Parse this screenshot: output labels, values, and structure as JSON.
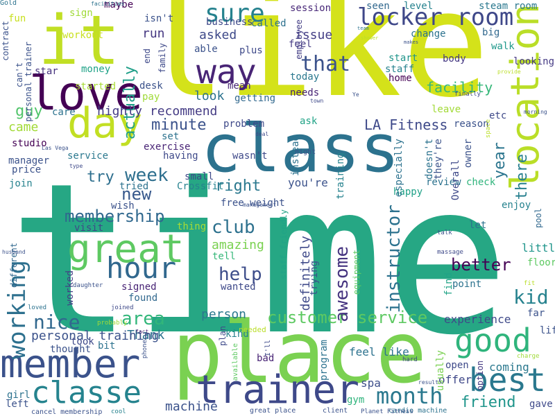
{
  "cloud": {
    "words": [
      {
        "text": "time",
        "color": "#26a784",
        "vertical": false
      },
      {
        "text": "like",
        "color": "#d4e21a",
        "vertical": false
      },
      {
        "text": "place",
        "color": "#7ad151",
        "vertical": false
      },
      {
        "text": "class",
        "color": "#2c728e",
        "vertical": false
      },
      {
        "text": "it",
        "color": "#c1df24",
        "vertical": false
      },
      {
        "text": "love",
        "color": "#440154",
        "vertical": false
      },
      {
        "text": "member",
        "color": "#3b528b",
        "vertical": false
      },
      {
        "text": "trainer",
        "color": "#3e4989",
        "vertical": false
      },
      {
        "text": "great",
        "color": "#5ec962",
        "vertical": false
      },
      {
        "text": "location",
        "color": "#bade28",
        "vertical": true
      },
      {
        "text": "day",
        "color": "#c2df23",
        "vertical": false
      },
      {
        "text": "way",
        "color": "#482475",
        "vertical": false
      },
      {
        "text": "hour",
        "color": "#31688e",
        "vertical": false
      },
      {
        "text": "classe",
        "color": "#25838e",
        "vertical": false
      },
      {
        "text": "good",
        "color": "#2fb47c",
        "vertical": false
      },
      {
        "text": "best",
        "color": "#2a788e",
        "vertical": false
      },
      {
        "text": "sure",
        "color": "#26828e",
        "vertical": false
      },
      {
        "text": "locker room",
        "color": "#3f4889",
        "vertical": false
      },
      {
        "text": "working",
        "color": "#2d708e",
        "vertical": true
      },
      {
        "text": "month",
        "color": "#2a788e",
        "vertical": false
      },
      {
        "text": "membership",
        "color": "#30688e",
        "vertical": false
      },
      {
        "text": "customer service",
        "color": "#5ec962",
        "vertical": false
      },
      {
        "text": "area",
        "color": "#32b67a",
        "vertical": false
      },
      {
        "text": "nice",
        "color": "#31688e",
        "vertical": false
      },
      {
        "text": "week",
        "color": "#2e6f8e",
        "vertical": false
      },
      {
        "text": "club",
        "color": "#2d718e",
        "vertical": false
      },
      {
        "text": "help",
        "color": "#3d4d8a",
        "vertical": false
      },
      {
        "text": "kid",
        "color": "#26828e",
        "vertical": false
      },
      {
        "text": "that",
        "color": "#3b528b",
        "vertical": false
      },
      {
        "text": "instructor",
        "color": "#2c728e",
        "vertical": true
      },
      {
        "text": "awesome",
        "color": "#463480",
        "vertical": true
      },
      {
        "text": "better",
        "color": "#440154",
        "vertical": false
      },
      {
        "text": "friend",
        "color": "#1f958b",
        "vertical": false
      },
      {
        "text": "guy",
        "color": "#50c46a",
        "vertical": false
      },
      {
        "text": "actually",
        "color": "#1f9f88",
        "vertical": true
      },
      {
        "text": "minute",
        "color": "#3b528b",
        "vertical": false
      },
      {
        "text": "LA Fitness",
        "color": "#3e4989",
        "vertical": false
      },
      {
        "text": "new",
        "color": "#38598c",
        "vertical": false
      },
      {
        "text": "try",
        "color": "#2e6f8e",
        "vertical": false
      },
      {
        "text": "right",
        "color": "#2a788e",
        "vertical": false
      },
      {
        "text": "year",
        "color": "#2b758e",
        "vertical": true
      },
      {
        "text": "there",
        "color": "#277f8e",
        "vertical": true
      },
      {
        "text": "machine",
        "color": "#3b528b",
        "vertical": false
      },
      {
        "text": "amazing",
        "color": "#7ad151",
        "vertical": false
      },
      {
        "text": "Thank",
        "color": "#2c728e",
        "vertical": false
      },
      {
        "text": "person",
        "color": "#2a788e",
        "vertical": false
      },
      {
        "text": "facility",
        "color": "#35b779",
        "vertical": false
      },
      {
        "text": "experience",
        "color": "#3e4989",
        "vertical": false
      },
      {
        "text": "definitely",
        "color": "#3e4989",
        "vertical": true
      },
      {
        "text": "look",
        "color": "#2c728e",
        "vertical": false
      },
      {
        "text": "issue",
        "color": "#433e85",
        "vertical": false
      },
      {
        "text": "asked",
        "color": "#3e4989",
        "vertical": false
      },
      {
        "text": "you're",
        "color": "#3b528b",
        "vertical": false
      },
      {
        "text": "highly recommend",
        "color": "#443b84",
        "vertical": false
      },
      {
        "text": "came",
        "color": "#a2da37",
        "vertical": false
      },
      {
        "text": "little",
        "color": "#1f958b",
        "vertical": false
      },
      {
        "text": "find",
        "color": "#20a386",
        "vertical": true
      },
      {
        "text": "personal training",
        "color": "#3b528b",
        "vertical": false
      },
      {
        "text": "spa",
        "color": "#3d4e8a",
        "vertical": false
      },
      {
        "text": "feel like",
        "color": "#2c728e",
        "vertical": false
      },
      {
        "text": "coming",
        "color": "#2a788e",
        "vertical": false
      },
      {
        "text": "offer",
        "color": "#3f4889",
        "vertical": false
      },
      {
        "text": "run",
        "color": "#453781",
        "vertical": false
      },
      {
        "text": "sign",
        "color": "#a0da39",
        "vertical": false
      },
      {
        "text": "fun",
        "color": "#c8e020",
        "vertical": false
      },
      {
        "text": "maybe",
        "color": "#440154",
        "vertical": false
      },
      {
        "text": "business",
        "color": "#3e4989",
        "vertical": false
      },
      {
        "text": "called",
        "color": "#2d718e",
        "vertical": false
      },
      {
        "text": "session",
        "color": "#482878",
        "vertical": false
      },
      {
        "text": "seen",
        "color": "#31688e",
        "vertical": false
      },
      {
        "text": "level",
        "color": "#26828e",
        "vertical": false
      },
      {
        "text": "steam room",
        "color": "#2a788e",
        "vertical": false
      },
      {
        "text": "workout",
        "color": "#c8e020",
        "vertical": false
      },
      {
        "text": "isn't",
        "color": "#3b528b",
        "vertical": false
      },
      {
        "text": "plus",
        "color": "#3e4989",
        "vertical": false
      },
      {
        "text": "feel",
        "color": "#443a83",
        "vertical": false
      },
      {
        "text": "change",
        "color": "#2c728e",
        "vertical": false
      },
      {
        "text": "big",
        "color": "#31688e",
        "vertical": false
      },
      {
        "text": "walk",
        "color": "#1f988b",
        "vertical": false
      },
      {
        "text": "able",
        "color": "#3b528b",
        "vertical": false
      },
      {
        "text": "looking",
        "color": "#443983",
        "vertical": false
      },
      {
        "text": "body",
        "color": "#453882",
        "vertical": false
      },
      {
        "text": "start",
        "color": "#1f958b",
        "vertical": false
      },
      {
        "text": "today",
        "color": "#2a788e",
        "vertical": false
      },
      {
        "text": "staff",
        "color": "#26828e",
        "vertical": false
      },
      {
        "text": "home",
        "color": "#440154",
        "vertical": false
      },
      {
        "text": "money",
        "color": "#1fa287",
        "vertical": false
      },
      {
        "text": "star",
        "color": "#46327e",
        "vertical": false
      },
      {
        "text": "started",
        "color": "#a8db34",
        "vertical": false
      },
      {
        "text": "desk",
        "color": "#3b528b",
        "vertical": false
      },
      {
        "text": "pay",
        "color": "#a0da39",
        "vertical": false
      },
      {
        "text": "needs",
        "color": "#482475",
        "vertical": false
      },
      {
        "text": "getting",
        "color": "#31688e",
        "vertical": false
      },
      {
        "text": "leave",
        "color": "#a2da37",
        "vertical": false
      },
      {
        "text": "etc",
        "color": "#3e4989",
        "vertical": false
      },
      {
        "text": "care",
        "color": "#2c728e",
        "vertical": false
      },
      {
        "text": "mean",
        "color": "#482475",
        "vertical": false
      },
      {
        "text": "ask",
        "color": "#20a386",
        "vertical": false
      },
      {
        "text": "problem",
        "color": "#3e4989",
        "vertical": false
      },
      {
        "text": "reason",
        "color": "#3b528b",
        "vertical": false
      },
      {
        "text": "set",
        "color": "#2c728e",
        "vertical": false
      },
      {
        "text": "exercise",
        "color": "#482475",
        "vertical": false
      },
      {
        "text": "having",
        "color": "#3e4989",
        "vertical": false
      },
      {
        "text": "wasn't",
        "color": "#3e4989",
        "vertical": false
      },
      {
        "text": "service",
        "color": "#2a788e",
        "vertical": false
      },
      {
        "text": "manager",
        "color": "#3b528b",
        "vertical": false
      },
      {
        "text": "studio",
        "color": "#440154",
        "vertical": false
      },
      {
        "text": "price",
        "color": "#3b528b",
        "vertical": false
      },
      {
        "text": "join",
        "color": "#26828e",
        "vertical": false
      },
      {
        "text": "tried",
        "color": "#2c728e",
        "vertical": false
      },
      {
        "text": "Crossfit",
        "color": "#26828e",
        "vertical": false
      },
      {
        "text": "small",
        "color": "#3e4989",
        "vertical": false
      },
      {
        "text": "review",
        "color": "#2c728e",
        "vertical": false
      },
      {
        "text": "check",
        "color": "#2fb47c",
        "vertical": false
      },
      {
        "text": "happy",
        "color": "#1fa187",
        "vertical": false
      },
      {
        "text": "enjoy",
        "color": "#26828e",
        "vertical": false
      },
      {
        "text": "wish",
        "color": "#3b528b",
        "vertical": false
      },
      {
        "text": "visit",
        "color": "#3e4989",
        "vertical": false
      },
      {
        "text": "free weight",
        "color": "#3b528b",
        "vertical": false
      },
      {
        "text": "let",
        "color": "#2c728e",
        "vertical": false
      },
      {
        "text": "tell",
        "color": "#35b779",
        "vertical": false
      },
      {
        "text": "thing",
        "color": "#a8db34",
        "vertical": false
      },
      {
        "text": "worked",
        "color": "#433e85",
        "vertical": true
      },
      {
        "text": "signed",
        "color": "#482475",
        "vertical": false
      },
      {
        "text": "wanted",
        "color": "#3e4989",
        "vertical": false
      },
      {
        "text": "found",
        "color": "#31688e",
        "vertical": false
      },
      {
        "text": "point",
        "color": "#2c728e",
        "vertical": false
      },
      {
        "text": "floor",
        "color": "#5ec962",
        "vertical": false
      },
      {
        "text": "far",
        "color": "#3b528b",
        "vertical": false
      },
      {
        "text": "took",
        "color": "#3e4989",
        "vertical": false
      },
      {
        "text": "bit",
        "color": "#2c728e",
        "vertical": false
      },
      {
        "text": "thought",
        "color": "#3b528b",
        "vertical": false
      },
      {
        "text": "kind",
        "color": "#26828e",
        "vertical": false
      },
      {
        "text": "bad",
        "color": "#482475",
        "vertical": false
      },
      {
        "text": "open",
        "color": "#3e4989",
        "vertical": false
      },
      {
        "text": "gym",
        "color": "#2fb47c",
        "vertical": false
      },
      {
        "text": "girl",
        "color": "#2c728e",
        "vertical": false
      },
      {
        "text": "left",
        "color": "#3b528b",
        "vertical": false
      },
      {
        "text": "gave",
        "color": "#3e4989",
        "vertical": false
      },
      {
        "text": "life",
        "color": "#3b528b",
        "vertical": false
      },
      {
        "text": "option",
        "color": "#443983",
        "vertical": true
      },
      {
        "text": "plan",
        "color": "#3e4989",
        "vertical": true
      },
      {
        "text": "program",
        "color": "#2c728e",
        "vertical": true
      },
      {
        "text": "usually",
        "color": "#7ad151",
        "vertical": true
      },
      {
        "text": "trying",
        "color": "#3b528b",
        "vertical": true
      },
      {
        "text": "different",
        "color": "#31688e",
        "vertical": true
      },
      {
        "text": "equipment",
        "color": "#5ec962",
        "vertical": true
      },
      {
        "text": "staff friendly",
        "color": "#20a386",
        "vertical": true
      },
      {
        "text": "instead",
        "color": "#2c728e",
        "vertical": true
      },
      {
        "text": "training",
        "color": "#26828e",
        "vertical": true
      },
      {
        "text": "especially",
        "color": "#2c728e",
        "vertical": true
      },
      {
        "text": "they're",
        "color": "#3b528b",
        "vertical": true
      },
      {
        "text": "owner",
        "color": "#3b528b",
        "vertical": true
      },
      {
        "text": "doesn't",
        "color": "#2c728e",
        "vertical": true
      },
      {
        "text": "Overall",
        "color": "#3e4989",
        "vertical": true
      },
      {
        "text": "pool",
        "color": "#31688e",
        "vertical": true
      },
      {
        "text": "contract",
        "color": "#3b528b",
        "vertical": true
      },
      {
        "text": "personal trainer",
        "color": "#3b528b",
        "vertical": true
      },
      {
        "text": "can't",
        "color": "#3b528b",
        "vertical": true
      },
      {
        "text": "end",
        "color": "#3e4989",
        "vertical": true
      },
      {
        "text": "family",
        "color": "#3e4989",
        "vertical": true
      },
      {
        "text": "employee",
        "color": "#433e85",
        "vertical": true
      },
      {
        "text": "needed",
        "color": "#bade28",
        "vertical": false
      },
      {
        "text": "available",
        "color": "#5ec962",
        "vertical": true
      },
      {
        "text": "I'll",
        "color": "#3e4989",
        "vertical": true
      },
      {
        "text": "great place",
        "color": "#3b528b",
        "vertical": false
      },
      {
        "text": "cardio machine",
        "color": "#2c728e",
        "vertical": false
      },
      {
        "text": "cancel membership",
        "color": "#3b528b",
        "vertical": false
      },
      {
        "text": "Planet Fitness",
        "color": "#3b528b",
        "vertical": false
      },
      {
        "text": "client",
        "color": "#3b528b",
        "vertical": false
      },
      {
        "text": "cool",
        "color": "#26828e",
        "vertical": false
      },
      {
        "text": "loved",
        "color": "#2c728e",
        "vertical": false
      },
      {
        "text": "joined",
        "color": "#3e4989",
        "vertical": false
      },
      {
        "text": "daughter",
        "color": "#3b528b",
        "vertical": false
      },
      {
        "text": "probably",
        "color": "#a0da39",
        "vertical": false
      },
      {
        "text": "phone",
        "color": "#3b528b",
        "vertical": true
      },
      {
        "text": "fact",
        "color": "#482475",
        "vertical": false
      },
      {
        "text": "hard",
        "color": "#3e4989",
        "vertical": false
      },
      {
        "text": "charge",
        "color": "#a0da39",
        "vertical": false
      },
      {
        "text": "result",
        "color": "#3b528b",
        "vertical": false
      },
      {
        "text": "fit",
        "color": "#bade28",
        "vertical": false
      },
      {
        "text": "talk",
        "color": "#3b528b",
        "vertical": false
      },
      {
        "text": "massage",
        "color": "#3e4989",
        "vertical": false
      },
      {
        "text": "management",
        "color": "#3b528b",
        "vertical": false
      },
      {
        "text": "type",
        "color": "#3e4989",
        "vertical": false
      },
      {
        "text": "Las Vega",
        "color": "#3b528b",
        "vertical": false
      },
      {
        "text": "deal",
        "color": "#3e4989",
        "vertical": false
      },
      {
        "text": "night",
        "color": "#3b528b",
        "vertical": false
      },
      {
        "text": "space",
        "color": "#bade28",
        "vertical": true
      },
      {
        "text": "morning",
        "color": "#3b528b",
        "vertical": false
      },
      {
        "text": "finally",
        "color": "#3e4989",
        "vertical": false
      },
      {
        "text": "provide",
        "color": "#bade28",
        "vertical": false
      },
      {
        "text": "Ye",
        "color": "#3b528b",
        "vertical": false
      },
      {
        "text": "town",
        "color": "#3e4989",
        "vertical": false
      },
      {
        "text": "makes",
        "color": "#3b528b",
        "vertical": false
      },
      {
        "text": "shower",
        "color": "#bade28",
        "vertical": false
      },
      {
        "text": "team",
        "color": "#2c728e",
        "vertical": false
      },
      {
        "text": "facilities",
        "color": "#2c728e",
        "vertical": false
      },
      {
        "text": "husband",
        "color": "#3b528b",
        "vertical": false
      },
      {
        "text": "Gold",
        "color": "#2c728e",
        "vertical": false
      }
    ]
  }
}
